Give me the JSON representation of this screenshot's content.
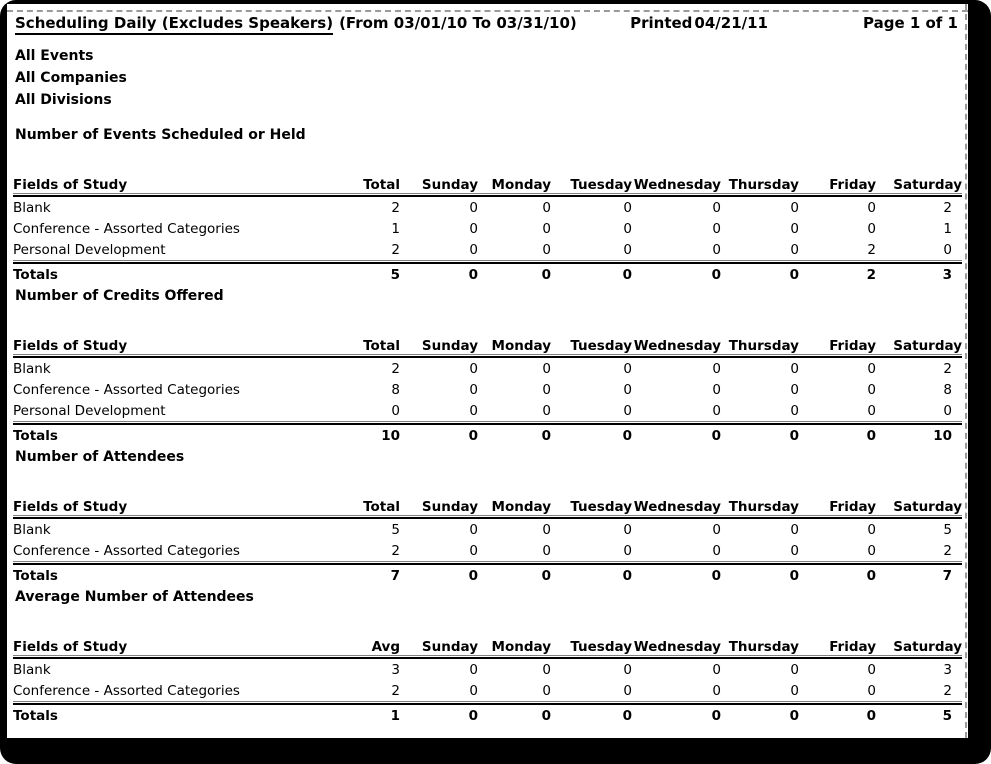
{
  "header": {
    "title": "Scheduling Daily (Excludes Speakers)",
    "date_range": "(From 03/01/10 To 03/31/10)",
    "printed_label": "Printed",
    "printed_date": "04/21/11",
    "page_info": "Page 1 of 1"
  },
  "filters": [
    "All Events",
    "All Companies",
    "All Divisions"
  ],
  "day_columns": [
    "Sunday",
    "Monday",
    "Tuesday",
    "Wednesday",
    "Thursday",
    "Friday",
    "Saturday"
  ],
  "sections": [
    {
      "title": "Number of Events Scheduled or Held",
      "first_col_header": "Fields of Study",
      "value_col_header": "Total",
      "rows": [
        {
          "label": "Blank",
          "values": [
            2,
            0,
            0,
            0,
            0,
            0,
            0,
            2
          ]
        },
        {
          "label": "Conference - Assorted Categories",
          "values": [
            1,
            0,
            0,
            0,
            0,
            0,
            0,
            1
          ]
        },
        {
          "label": "Personal Development",
          "values": [
            2,
            0,
            0,
            0,
            0,
            0,
            2,
            0
          ]
        }
      ],
      "totals": {
        "label": "Totals",
        "values": [
          5,
          0,
          0,
          0,
          0,
          0,
          2,
          3
        ]
      }
    },
    {
      "title": "Number of Credits Offered",
      "first_col_header": "Fields of Study",
      "value_col_header": "Total",
      "rows": [
        {
          "label": "Blank",
          "values": [
            2,
            0,
            0,
            0,
            0,
            0,
            0,
            2
          ]
        },
        {
          "label": "Conference - Assorted Categories",
          "values": [
            8,
            0,
            0,
            0,
            0,
            0,
            0,
            8
          ]
        },
        {
          "label": "Personal Development",
          "values": [
            0,
            0,
            0,
            0,
            0,
            0,
            0,
            0
          ]
        }
      ],
      "totals": {
        "label": "Totals",
        "values": [
          10,
          0,
          0,
          0,
          0,
          0,
          0,
          10
        ]
      }
    },
    {
      "title": "Number of Attendees",
      "first_col_header": "Fields of Study",
      "value_col_header": "Total",
      "rows": [
        {
          "label": "Blank",
          "values": [
            5,
            0,
            0,
            0,
            0,
            0,
            0,
            5
          ]
        },
        {
          "label": "Conference - Assorted Categories",
          "values": [
            2,
            0,
            0,
            0,
            0,
            0,
            0,
            2
          ]
        }
      ],
      "totals": {
        "label": "Totals",
        "values": [
          7,
          0,
          0,
          0,
          0,
          0,
          0,
          7
        ]
      }
    },
    {
      "title": "Average Number of Attendees",
      "first_col_header": "Fields of Study",
      "value_col_header": "Avg",
      "rows": [
        {
          "label": "Blank",
          "values": [
            3,
            0,
            0,
            0,
            0,
            0,
            0,
            3
          ]
        },
        {
          "label": "Conference - Assorted Categories",
          "values": [
            2,
            0,
            0,
            0,
            0,
            0,
            0,
            2
          ]
        }
      ],
      "totals": {
        "label": "Totals",
        "values": [
          1,
          0,
          0,
          0,
          0,
          0,
          0,
          5
        ]
      }
    }
  ]
}
